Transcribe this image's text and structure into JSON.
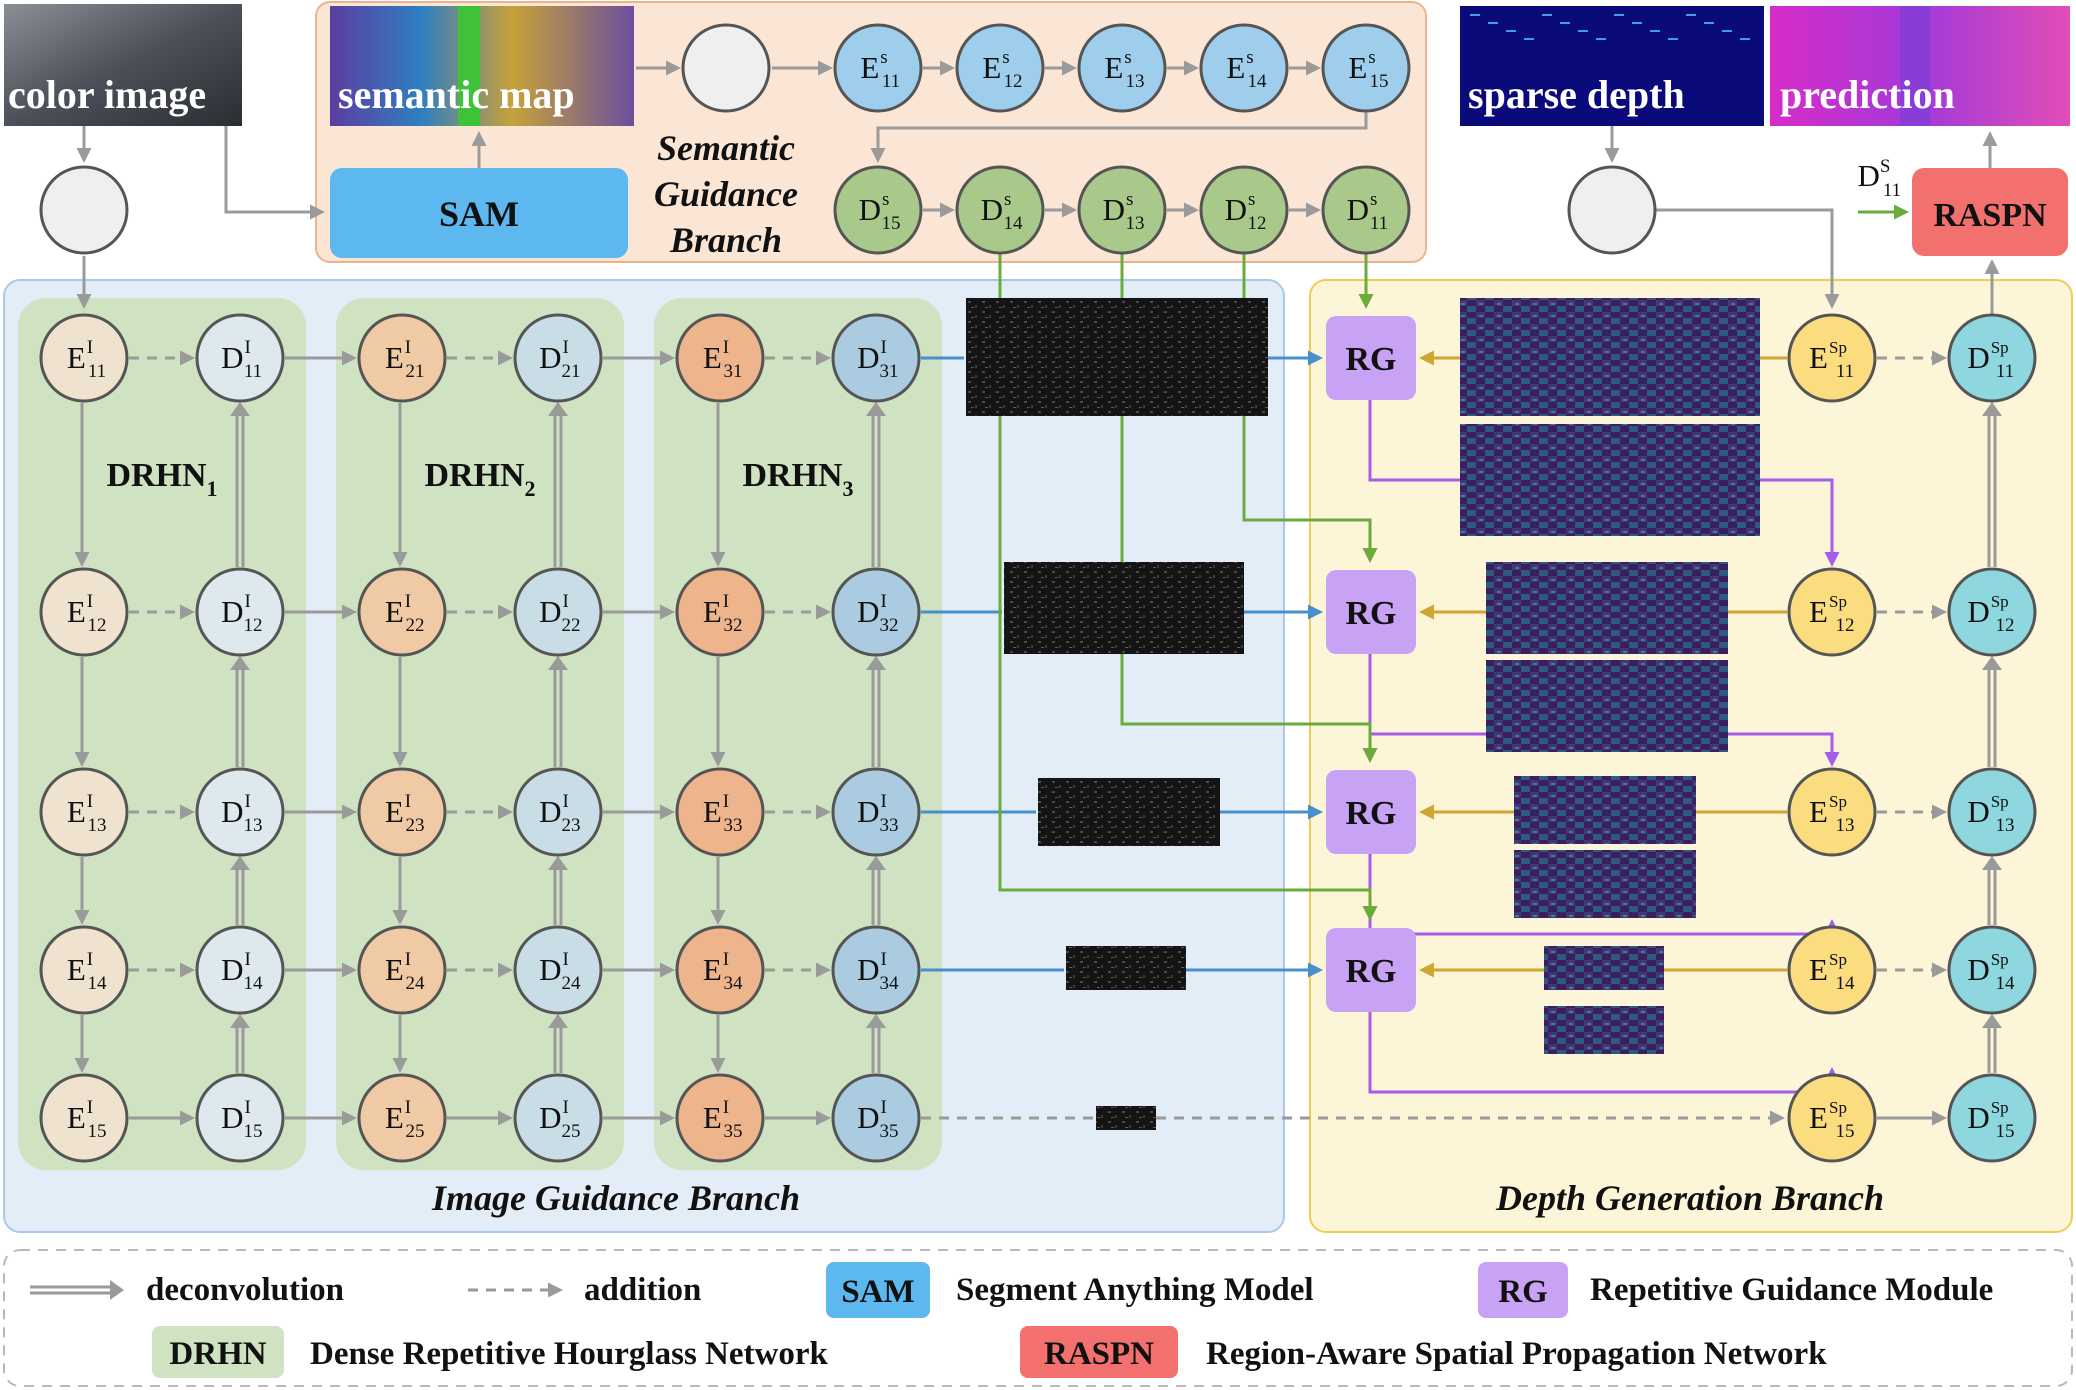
{
  "images": {
    "color": "color image",
    "semantic": "semantic map",
    "sparse": "sparse depth",
    "prediction": "prediction"
  },
  "semantic_branch": {
    "label_lines": [
      "Semantic",
      "Guidance",
      "Branch"
    ],
    "sam_label": "SAM",
    "encoders": [
      {
        "base": "E",
        "sup": "s",
        "sub": "11"
      },
      {
        "base": "E",
        "sup": "s",
        "sub": "12"
      },
      {
        "base": "E",
        "sup": "s",
        "sub": "13"
      },
      {
        "base": "E",
        "sup": "s",
        "sub": "14"
      },
      {
        "base": "E",
        "sup": "s",
        "sub": "15"
      }
    ],
    "decoders": [
      {
        "base": "D",
        "sup": "s",
        "sub": "15"
      },
      {
        "base": "D",
        "sup": "s",
        "sub": "14"
      },
      {
        "base": "D",
        "sup": "s",
        "sub": "13"
      },
      {
        "base": "D",
        "sup": "s",
        "sub": "12"
      },
      {
        "base": "D",
        "sup": "s",
        "sub": "11"
      }
    ]
  },
  "raspn": {
    "label": "RASPN",
    "input": {
      "base": "D",
      "sup": "S",
      "sub": "11"
    }
  },
  "image_branch": {
    "title": "Image Guidance Branch",
    "drhn": [
      {
        "name": "DRHN",
        "sub": "1"
      },
      {
        "name": "DRHN",
        "sub": "2"
      },
      {
        "name": "DRHN",
        "sub": "3"
      }
    ],
    "columns": [
      {
        "enc": [
          {
            "base": "E",
            "sup": "I",
            "sub": "11"
          },
          {
            "base": "E",
            "sup": "I",
            "sub": "12"
          },
          {
            "base": "E",
            "sup": "I",
            "sub": "13"
          },
          {
            "base": "E",
            "sup": "I",
            "sub": "14"
          },
          {
            "base": "E",
            "sup": "I",
            "sub": "15"
          }
        ],
        "dec": [
          {
            "base": "D",
            "sup": "I",
            "sub": "11"
          },
          {
            "base": "D",
            "sup": "I",
            "sub": "12"
          },
          {
            "base": "D",
            "sup": "I",
            "sub": "13"
          },
          {
            "base": "D",
            "sup": "I",
            "sub": "14"
          },
          {
            "base": "D",
            "sup": "I",
            "sub": "15"
          }
        ]
      },
      {
        "enc": [
          {
            "base": "E",
            "sup": "I",
            "sub": "21"
          },
          {
            "base": "E",
            "sup": "I",
            "sub": "22"
          },
          {
            "base": "E",
            "sup": "I",
            "sub": "23"
          },
          {
            "base": "E",
            "sup": "I",
            "sub": "24"
          },
          {
            "base": "E",
            "sup": "I",
            "sub": "25"
          }
        ],
        "dec": [
          {
            "base": "D",
            "sup": "I",
            "sub": "21"
          },
          {
            "base": "D",
            "sup": "I",
            "sub": "22"
          },
          {
            "base": "D",
            "sup": "I",
            "sub": "23"
          },
          {
            "base": "D",
            "sup": "I",
            "sub": "24"
          },
          {
            "base": "D",
            "sup": "I",
            "sub": "25"
          }
        ]
      },
      {
        "enc": [
          {
            "base": "E",
            "sup": "I",
            "sub": "31"
          },
          {
            "base": "E",
            "sup": "I",
            "sub": "32"
          },
          {
            "base": "E",
            "sup": "I",
            "sub": "33"
          },
          {
            "base": "E",
            "sup": "I",
            "sub": "34"
          },
          {
            "base": "E",
            "sup": "I",
            "sub": "35"
          }
        ],
        "dec": [
          {
            "base": "D",
            "sup": "I",
            "sub": "31"
          },
          {
            "base": "D",
            "sup": "I",
            "sub": "32"
          },
          {
            "base": "D",
            "sup": "I",
            "sub": "33"
          },
          {
            "base": "D",
            "sup": "I",
            "sub": "34"
          },
          {
            "base": "D",
            "sup": "I",
            "sub": "35"
          }
        ]
      }
    ]
  },
  "depth_branch": {
    "title": "Depth Generation Branch",
    "rg_label": "RG",
    "enc": [
      {
        "base": "E",
        "sup": "Sp",
        "sub": "11"
      },
      {
        "base": "E",
        "sup": "Sp",
        "sub": "12"
      },
      {
        "base": "E",
        "sup": "Sp",
        "sub": "13"
      },
      {
        "base": "E",
        "sup": "Sp",
        "sub": "14"
      },
      {
        "base": "E",
        "sup": "Sp",
        "sub": "15"
      }
    ],
    "dec": [
      {
        "base": "D",
        "sup": "Sp",
        "sub": "11"
      },
      {
        "base": "D",
        "sup": "Sp",
        "sub": "12"
      },
      {
        "base": "D",
        "sup": "Sp",
        "sub": "13"
      },
      {
        "base": "D",
        "sup": "Sp",
        "sub": "14"
      },
      {
        "base": "D",
        "sup": "Sp",
        "sub": "15"
      }
    ]
  },
  "legend": {
    "deconvolution": "deconvolution",
    "addition": "addition",
    "sam_badge": "SAM",
    "sam_text": "Segment Anything Model",
    "rg_badge": "RG",
    "rg_text": "Repetitive Guidance Module",
    "drhn_badge": "DRHN",
    "drhn_text": "Dense Repetitive Hourglass Network",
    "raspn_badge": "RASPN",
    "raspn_text": "Region-Aware Spatial Propagation Network"
  },
  "colors": {
    "enc_image": "#efe3cf",
    "enc_image_mid": "#f0caa4",
    "enc_image_dark": "#eeb58c",
    "dec_image": "#dde9ec",
    "dec_image_mid": "#c8dde6",
    "dec_image_dark": "#aacbe0",
    "semantic_enc": "#9fcdec",
    "semantic_dec": "#a9c98a",
    "depth_enc": "#fbdc7e",
    "depth_dec": "#8fd7de",
    "sam": "#5cb8ef",
    "rg": "#c8a2f5",
    "raspn": "#f2706e",
    "drhn_bg": "#cfe3c2",
    "image_branch_bg": "#e2edf7",
    "depth_branch_bg": "#fdf5d8",
    "semantic_branch_bg": "#fbe6d6",
    "blue_arrow": "#4a8fcd",
    "green_arrow": "#6aab3c",
    "gold_arrow": "#cfa535",
    "purple_arrow": "#a65cea",
    "gray_arrow": "#9a9a9a"
  }
}
